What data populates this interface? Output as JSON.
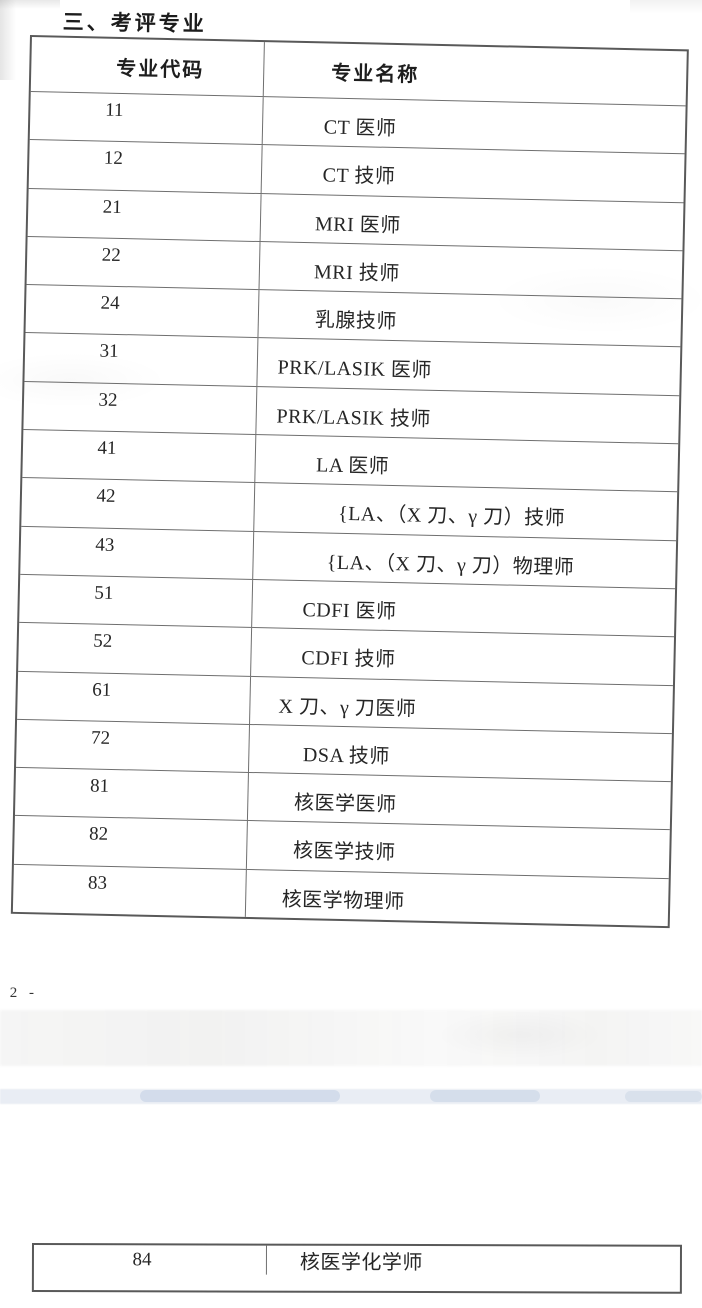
{
  "page": {
    "section_title": "三、考评专业",
    "page_number": "- 2 -"
  },
  "colors": {
    "paper": "#ffffff",
    "text": "#262626",
    "table_border": "#6f6f6f",
    "artifact_band_blue": "#b0c0d7"
  },
  "main_table": {
    "headers": {
      "code": "专业代码",
      "name": "专业名称"
    },
    "rows": [
      {
        "code": "11",
        "name": "CT 医师"
      },
      {
        "code": "12",
        "name": "CT 技师"
      },
      {
        "code": "21",
        "name": "MRI 医师"
      },
      {
        "code": "22",
        "name": "MRI 技师"
      },
      {
        "code": "24",
        "name": "乳腺技师"
      },
      {
        "code": "31",
        "name": "PRK/LASIK 医师"
      },
      {
        "code": "32",
        "name": "PRK/LASIK 技师"
      },
      {
        "code": "41",
        "name": "LA 医师"
      },
      {
        "code": "42",
        "name": "{LA、（X 刀、γ 刀）技师"
      },
      {
        "code": "43",
        "name": "{LA、（X 刀、γ 刀）物理师"
      },
      {
        "code": "51",
        "name": "CDFI 医师"
      },
      {
        "code": "52",
        "name": "CDFI 技师"
      },
      {
        "code": "61",
        "name": "X 刀、γ 刀医师"
      },
      {
        "code": "72",
        "name": "DSA 技师"
      },
      {
        "code": "81",
        "name": "核医学医师"
      },
      {
        "code": "82",
        "name": "核医学技师"
      },
      {
        "code": "83",
        "name": "核医学物理师"
      }
    ]
  },
  "continuation_table": {
    "rows": [
      {
        "code": "84",
        "name": "核医学化学师"
      }
    ]
  }
}
